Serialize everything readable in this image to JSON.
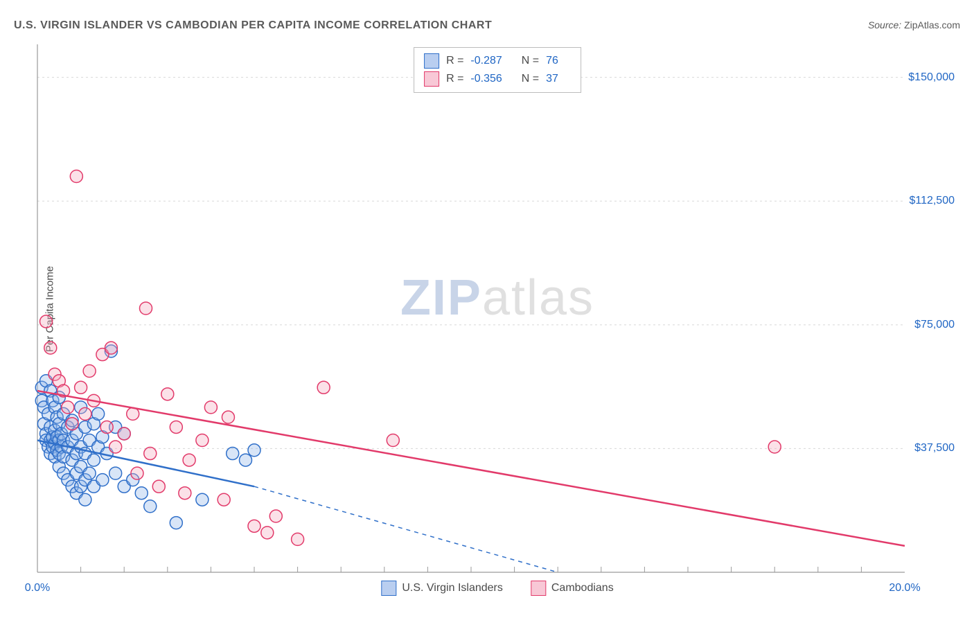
{
  "title": "U.S. VIRGIN ISLANDER VS CAMBODIAN PER CAPITA INCOME CORRELATION CHART",
  "source_label": "Source:",
  "source_value": "ZipAtlas.com",
  "ylabel": "Per Capita Income",
  "watermark_a": "ZIP",
  "watermark_b": "atlas",
  "chart": {
    "type": "scatter-with-regression",
    "background_color": "#ffffff",
    "grid_color": "#d8d8d8",
    "axis_color": "#9a9a9a",
    "xlim": [
      0,
      20
    ],
    "ylim": [
      0,
      160000
    ],
    "x_ticks": [
      0,
      20
    ],
    "x_tick_labels": [
      "0.0%",
      "20.0%"
    ],
    "x_minor_ticks": [
      1,
      2,
      3,
      4,
      5,
      6,
      7,
      8,
      9,
      10,
      11,
      12,
      13,
      14,
      15,
      16,
      17,
      18,
      19
    ],
    "y_ticks": [
      37500,
      75000,
      112500,
      150000
    ],
    "y_tick_labels": [
      "$37,500",
      "$75,000",
      "$112,500",
      "$150,000"
    ],
    "marker_radius": 9,
    "marker_stroke_width": 1.5,
    "marker_fill_opacity": 0.35,
    "regression_line_width": 2.5,
    "series": [
      {
        "name": "U.S. Virgin Islanders",
        "color_stroke": "#2f6fc9",
        "color_fill": "#8fb4e8",
        "legend_swatch_fill": "#b9cef0",
        "legend_swatch_stroke": "#2f6fc9",
        "R_label": "R =",
        "R": "-0.287",
        "N_label": "N =",
        "N": "76",
        "regression": {
          "x1": 0,
          "y1": 40000,
          "x2_solid": 5.0,
          "y2_solid": 26000,
          "x2_dash": 12.0,
          "y2_dash": 0,
          "dash_from_solid_end": true
        },
        "points": [
          [
            0.1,
            56000
          ],
          [
            0.1,
            52000
          ],
          [
            0.15,
            50000
          ],
          [
            0.15,
            45000
          ],
          [
            0.2,
            58000
          ],
          [
            0.2,
            42000
          ],
          [
            0.2,
            40000
          ],
          [
            0.25,
            48000
          ],
          [
            0.25,
            38000
          ],
          [
            0.3,
            55000
          ],
          [
            0.3,
            44000
          ],
          [
            0.3,
            40000
          ],
          [
            0.3,
            36000
          ],
          [
            0.35,
            52000
          ],
          [
            0.35,
            41000
          ],
          [
            0.35,
            38000
          ],
          [
            0.4,
            50000
          ],
          [
            0.4,
            43000
          ],
          [
            0.4,
            39000
          ],
          [
            0.4,
            35000
          ],
          [
            0.45,
            47000
          ],
          [
            0.45,
            41000
          ],
          [
            0.45,
            37000
          ],
          [
            0.5,
            53000
          ],
          [
            0.5,
            45000
          ],
          [
            0.5,
            40000
          ],
          [
            0.5,
            36000
          ],
          [
            0.5,
            32000
          ],
          [
            0.55,
            42000
          ],
          [
            0.55,
            38000
          ],
          [
            0.6,
            48000
          ],
          [
            0.6,
            40000
          ],
          [
            0.6,
            35000
          ],
          [
            0.6,
            30000
          ],
          [
            0.7,
            44000
          ],
          [
            0.7,
            38000
          ],
          [
            0.7,
            28000
          ],
          [
            0.8,
            46000
          ],
          [
            0.8,
            40000
          ],
          [
            0.8,
            34000
          ],
          [
            0.8,
            26000
          ],
          [
            0.9,
            42000
          ],
          [
            0.9,
            36000
          ],
          [
            0.9,
            30000
          ],
          [
            0.9,
            24000
          ],
          [
            1.0,
            50000
          ],
          [
            1.0,
            38000
          ],
          [
            1.0,
            32000
          ],
          [
            1.0,
            26000
          ],
          [
            1.1,
            44000
          ],
          [
            1.1,
            36000
          ],
          [
            1.1,
            28000
          ],
          [
            1.1,
            22000
          ],
          [
            1.2,
            40000
          ],
          [
            1.2,
            30000
          ],
          [
            1.3,
            45000
          ],
          [
            1.3,
            34000
          ],
          [
            1.3,
            26000
          ],
          [
            1.4,
            48000
          ],
          [
            1.4,
            38000
          ],
          [
            1.5,
            41000
          ],
          [
            1.5,
            28000
          ],
          [
            1.6,
            36000
          ],
          [
            1.7,
            67000
          ],
          [
            1.8,
            44000
          ],
          [
            1.8,
            30000
          ],
          [
            2.0,
            42000
          ],
          [
            2.0,
            26000
          ],
          [
            2.2,
            28000
          ],
          [
            2.4,
            24000
          ],
          [
            2.6,
            20000
          ],
          [
            3.2,
            15000
          ],
          [
            3.8,
            22000
          ],
          [
            4.5,
            36000
          ],
          [
            4.8,
            34000
          ],
          [
            5.0,
            37000
          ]
        ]
      },
      {
        "name": "Cambodians",
        "color_stroke": "#e23a6a",
        "color_fill": "#f4a9be",
        "legend_swatch_fill": "#f8c8d6",
        "legend_swatch_stroke": "#e23a6a",
        "R_label": "R =",
        "R": "-0.356",
        "N_label": "N =",
        "N": "37",
        "regression": {
          "x1": 0,
          "y1": 55000,
          "x2_solid": 20,
          "y2_solid": 8000,
          "dash_from_solid_end": false
        },
        "points": [
          [
            0.2,
            76000
          ],
          [
            0.3,
            68000
          ],
          [
            0.4,
            60000
          ],
          [
            0.5,
            58000
          ],
          [
            0.6,
            55000
          ],
          [
            0.7,
            50000
          ],
          [
            0.8,
            45000
          ],
          [
            0.9,
            120000
          ],
          [
            1.0,
            56000
          ],
          [
            1.1,
            48000
          ],
          [
            1.2,
            61000
          ],
          [
            1.3,
            52000
          ],
          [
            1.5,
            66000
          ],
          [
            1.6,
            44000
          ],
          [
            1.7,
            68000
          ],
          [
            1.8,
            38000
          ],
          [
            2.0,
            42000
          ],
          [
            2.2,
            48000
          ],
          [
            2.3,
            30000
          ],
          [
            2.5,
            80000
          ],
          [
            2.6,
            36000
          ],
          [
            2.8,
            26000
          ],
          [
            3.0,
            54000
          ],
          [
            3.2,
            44000
          ],
          [
            3.4,
            24000
          ],
          [
            3.5,
            34000
          ],
          [
            3.8,
            40000
          ],
          [
            4.0,
            50000
          ],
          [
            4.3,
            22000
          ],
          [
            4.4,
            47000
          ],
          [
            5.0,
            14000
          ],
          [
            5.3,
            12000
          ],
          [
            5.5,
            17000
          ],
          [
            6.6,
            56000
          ],
          [
            8.2,
            40000
          ],
          [
            17.0,
            38000
          ],
          [
            6.0,
            10000
          ]
        ]
      }
    ]
  },
  "legend_bottom": [
    {
      "label": "U.S. Virgin Islanders",
      "fill": "#b9cef0",
      "stroke": "#2f6fc9"
    },
    {
      "label": "Cambodians",
      "fill": "#f8c8d6",
      "stroke": "#e23a6a"
    }
  ]
}
